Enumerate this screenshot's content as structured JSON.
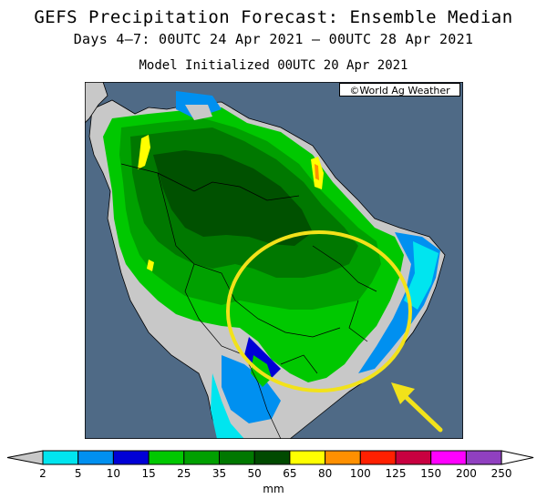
{
  "header": {
    "title": "GEFS Precipitation Forecast: Ensemble Median",
    "period": "Days 4–7: 00UTC 24 Apr 2021 – 00UTC 28 Apr 2021",
    "initialized": "Model Initialized 00UTC 20 Apr 2021"
  },
  "map": {
    "credit": "©World Ag Weather",
    "region": "South America",
    "ocean_color": "#4f6a86",
    "land_dry_color": "#c8c8c8",
    "highlight": {
      "shape": "ellipse",
      "color": "#f2e21a"
    },
    "arrow_color": "#f2e21a"
  },
  "legend": {
    "unit": "mm",
    "thresholds": [
      "2",
      "5",
      "10",
      "15",
      "25",
      "35",
      "50",
      "65",
      "80",
      "100",
      "125",
      "150",
      "200",
      "250"
    ],
    "colors": [
      "#00e5ef",
      "#0090f0",
      "#0000d6",
      "#00c800",
      "#00a000",
      "#007800",
      "#004a00",
      "#ffff00",
      "#ff9000",
      "#ff2000",
      "#c80040",
      "#ff00ff",
      "#9040c0"
    ]
  }
}
